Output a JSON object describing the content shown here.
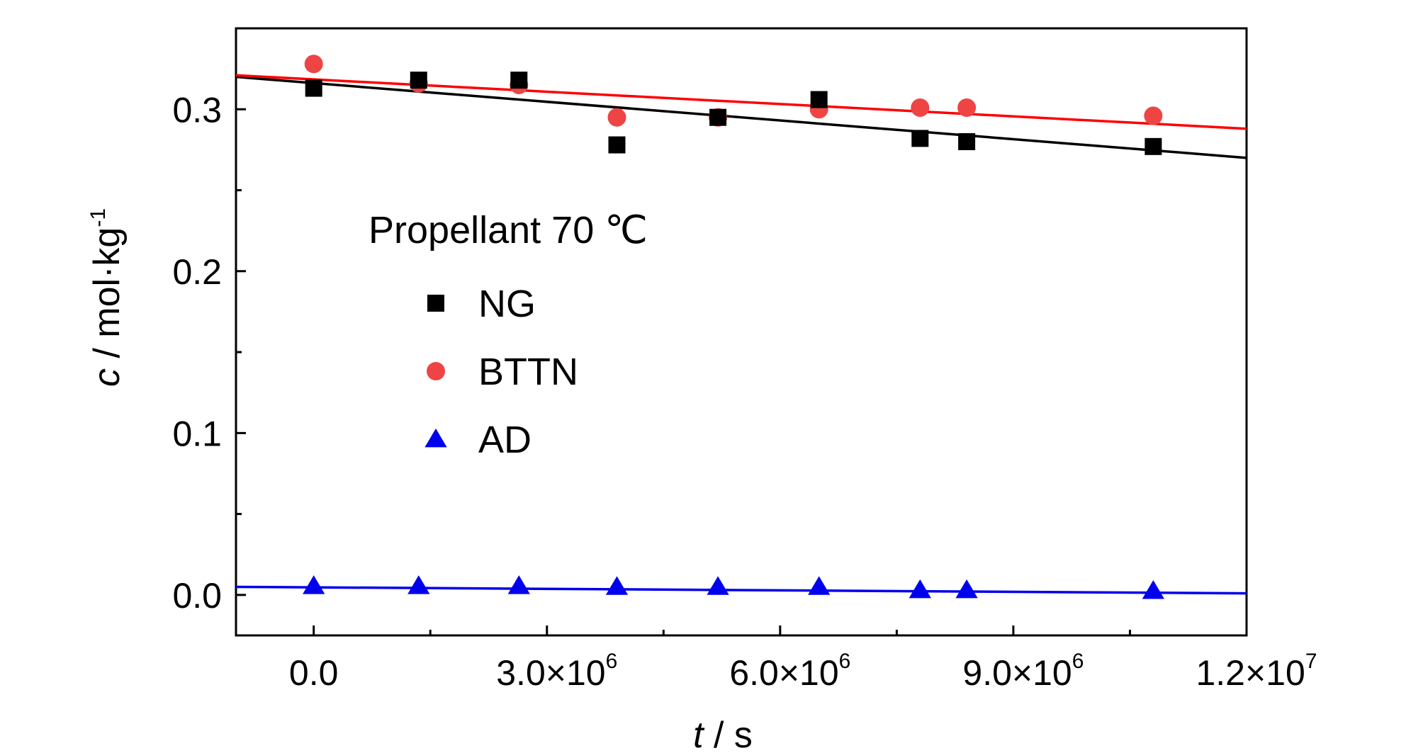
{
  "chart_data": {
    "type": "scatter",
    "xlabel": {
      "italic": "t",
      "rest": " / s"
    },
    "ylabel": {
      "italic": "c",
      "rest": " / mol·kg",
      "sup": "-1"
    },
    "xlim": [
      -1000000,
      12000000
    ],
    "ylim": [
      -0.025,
      0.35
    ],
    "x_ticks": [
      {
        "value": 0,
        "mantissa": "0.0",
        "exp": ""
      },
      {
        "value": 3000000,
        "mantissa": "3.0×10",
        "exp": "6"
      },
      {
        "value": 6000000,
        "mantissa": "6.0×10",
        "exp": "6"
      },
      {
        "value": 9000000,
        "mantissa": "9.0×10",
        "exp": "6"
      },
      {
        "value": 12000000,
        "mantissa": "1.2×10",
        "exp": "7"
      }
    ],
    "y_ticks": [
      {
        "value": 0.0,
        "label": "0.0"
      },
      {
        "value": 0.1,
        "label": "0.1"
      },
      {
        "value": 0.2,
        "label": "0.2"
      },
      {
        "value": 0.3,
        "label": "0.3"
      }
    ],
    "legend": {
      "title": "Propellant 70 ℃",
      "placement": "center-left"
    },
    "series": [
      {
        "name": "NG",
        "marker": "square",
        "color": "#000000",
        "x": [
          0,
          1350000,
          2640000,
          3900000,
          5200000,
          6500000,
          7800000,
          8400000,
          10800000
        ],
        "y": [
          0.313,
          0.318,
          0.318,
          0.278,
          0.295,
          0.306,
          0.282,
          0.28,
          0.277
        ],
        "fit": {
          "x": [
            -1000000,
            12000000
          ],
          "y": [
            0.32,
            0.27
          ]
        }
      },
      {
        "name": "BTTN",
        "marker": "circle",
        "color": "#ee4444",
        "x": [
          0,
          1350000,
          2640000,
          3900000,
          5200000,
          6500000,
          7800000,
          8400000,
          10800000
        ],
        "y": [
          0.328,
          0.316,
          0.315,
          0.295,
          0.295,
          0.3,
          0.301,
          0.301,
          0.296
        ],
        "fit": {
          "x": [
            -1000000,
            12000000
          ],
          "y": [
            0.321,
            0.288
          ]
        },
        "fit_color": "#ff0000"
      },
      {
        "name": "AD",
        "marker": "triangle",
        "color": "#0000ee",
        "x": [
          0,
          1350000,
          2640000,
          3900000,
          5200000,
          6500000,
          7800000,
          8400000,
          10800000
        ],
        "y": [
          0.0055,
          0.0055,
          0.0055,
          0.005,
          0.005,
          0.005,
          0.003,
          0.003,
          0.0025
        ],
        "fit": {
          "x": [
            -1000000,
            12000000
          ],
          "y": [
            0.005,
            0.001
          ]
        }
      }
    ]
  }
}
